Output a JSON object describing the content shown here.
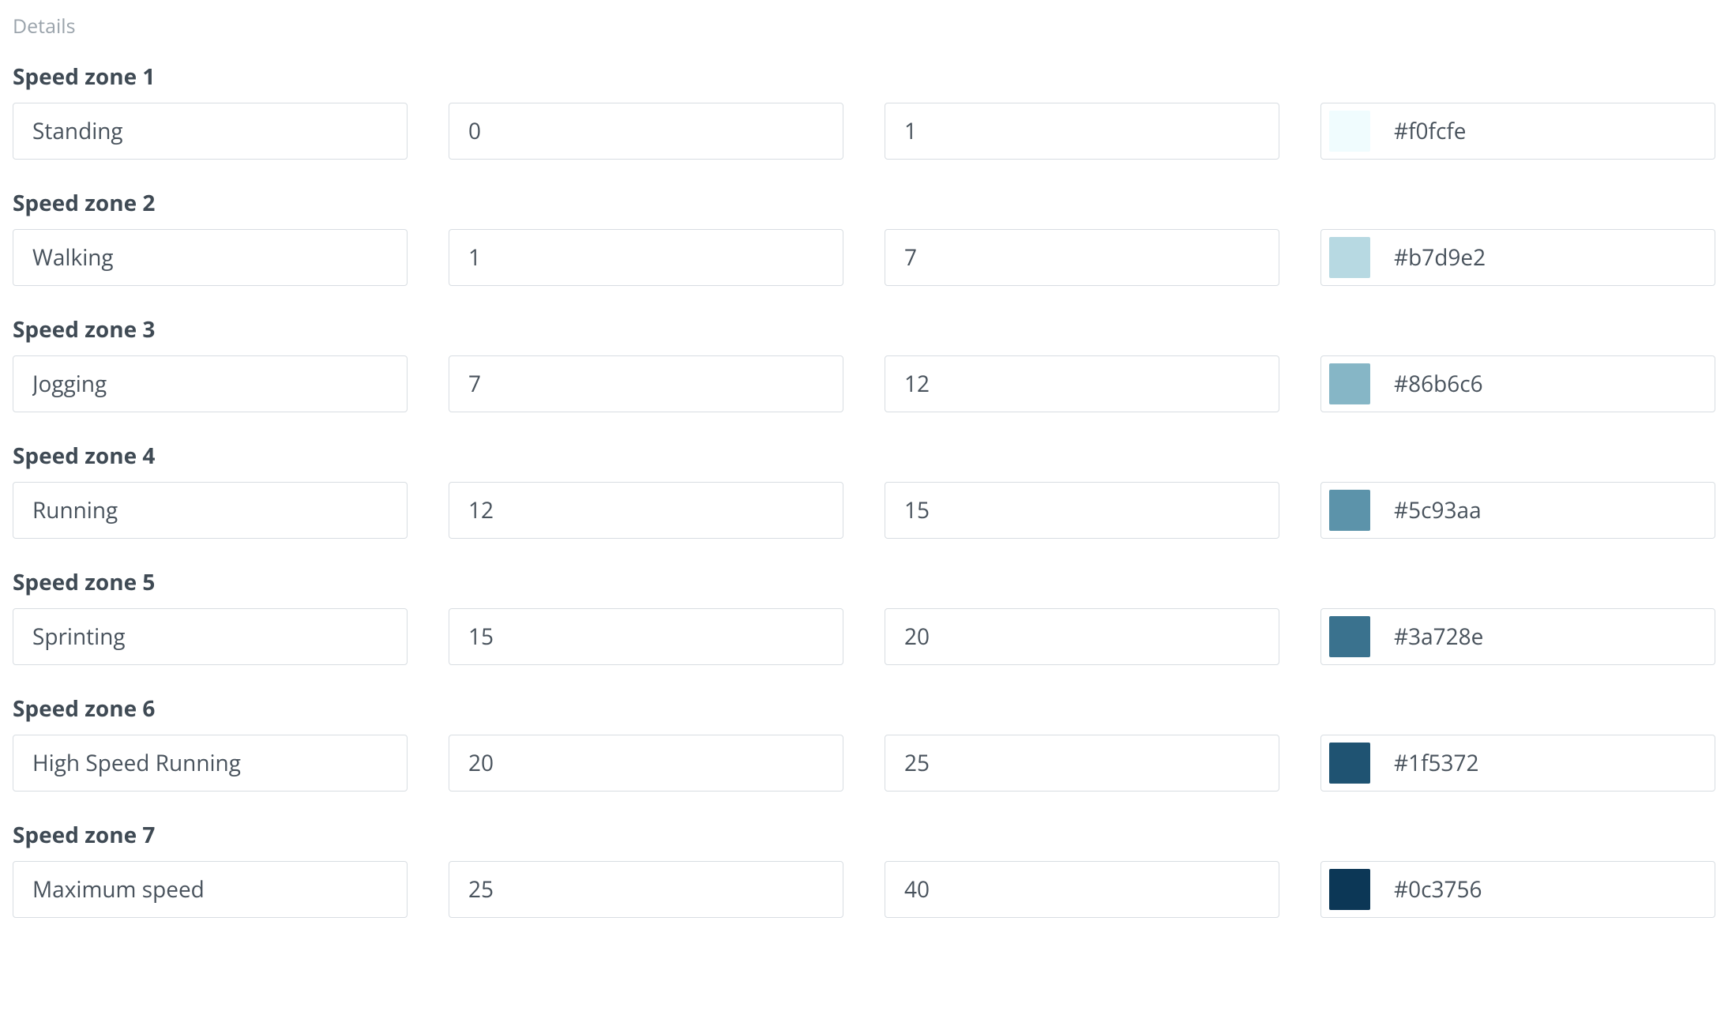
{
  "section_title": "Details",
  "label_prefix": "Speed zone",
  "zones": [
    {
      "label": "Speed zone 1",
      "name": "Standing",
      "min": "0",
      "max": "1",
      "color": "#f0fcfe"
    },
    {
      "label": "Speed zone 2",
      "name": "Walking",
      "min": "1",
      "max": "7",
      "color": "#b7d9e2"
    },
    {
      "label": "Speed zone 3",
      "name": "Jogging",
      "min": "7",
      "max": "12",
      "color": "#86b6c6"
    },
    {
      "label": "Speed zone 4",
      "name": "Running",
      "min": "12",
      "max": "15",
      "color": "#5c93aa"
    },
    {
      "label": "Speed zone 5",
      "name": "Sprinting",
      "min": "15",
      "max": "20",
      "color": "#3a728e"
    },
    {
      "label": "Speed zone 6",
      "name": "High Speed Running",
      "min": "20",
      "max": "25",
      "color": "#1f5372"
    },
    {
      "label": "Speed zone 7",
      "name": "Maximum speed",
      "min": "25",
      "max": "40",
      "color": "#0c3756"
    }
  ],
  "style": {
    "background": "#ffffff",
    "border_color": "#d8dde2",
    "label_color": "#3f4a54",
    "value_color": "#48525c",
    "section_title_color": "#9aa3ab",
    "font_size_label": 28,
    "font_size_value": 28,
    "font_size_section": 25
  }
}
